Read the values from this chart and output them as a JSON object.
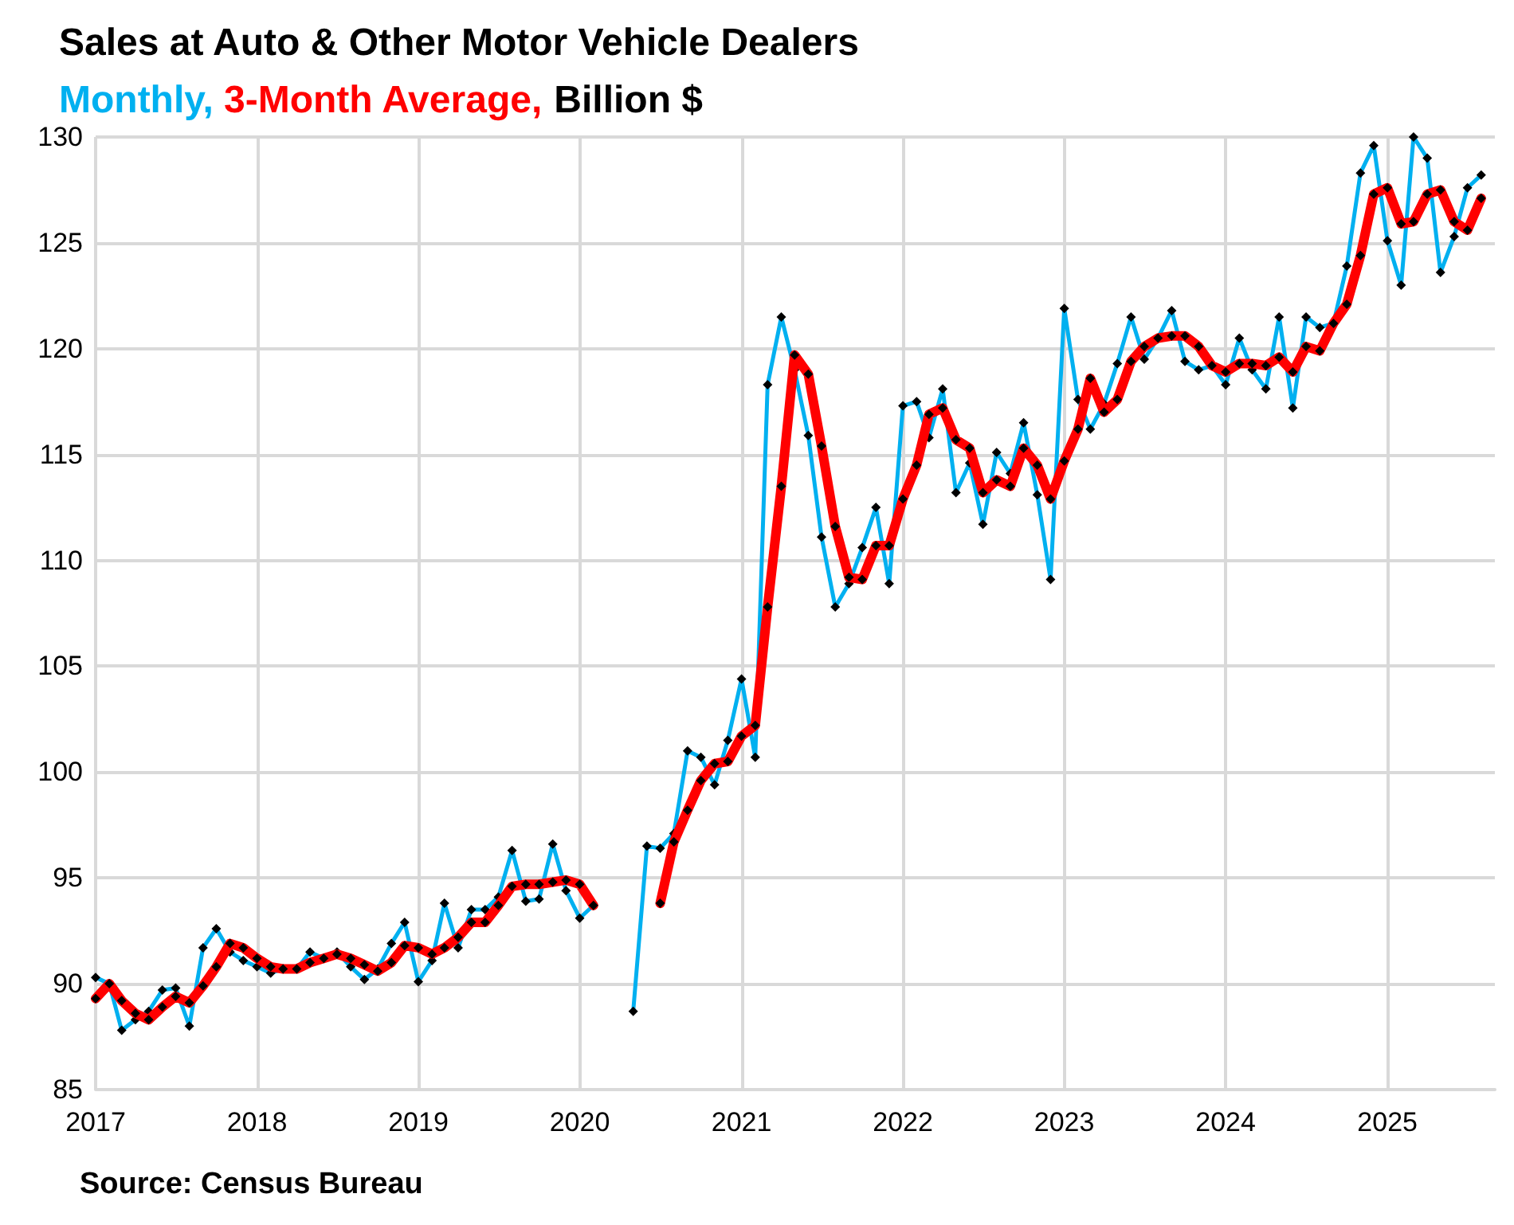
{
  "chart_data": {
    "type": "line",
    "title": "Sales at Auto & Other Motor Vehicle Dealers",
    "subtitle": "Billion $",
    "annotations": [
      "Source: Census Bureau"
    ],
    "x": [
      "2017-01",
      "2017-02",
      "2017-03",
      "2017-04",
      "2017-05",
      "2017-06",
      "2017-07",
      "2017-08",
      "2017-09",
      "2017-10",
      "2017-11",
      "2017-12",
      "2018-01",
      "2018-02",
      "2018-03",
      "2018-04",
      "2018-05",
      "2018-06",
      "2018-07",
      "2018-08",
      "2018-09",
      "2018-10",
      "2018-11",
      "2018-12",
      "2019-01",
      "2019-02",
      "2019-03",
      "2019-04",
      "2019-05",
      "2019-06",
      "2019-07",
      "2019-08",
      "2019-09",
      "2019-10",
      "2019-11",
      "2019-12",
      "2020-01",
      "2020-02",
      "2020-03",
      "2020-04",
      "2020-05",
      "2020-06",
      "2020-07",
      "2020-08",
      "2020-09",
      "2020-10",
      "2020-11",
      "2020-12",
      "2021-01",
      "2021-02",
      "2021-03",
      "2021-04",
      "2021-05",
      "2021-06",
      "2021-07",
      "2021-08",
      "2021-09",
      "2021-10",
      "2021-11",
      "2021-12",
      "2022-01",
      "2022-02",
      "2022-03",
      "2022-04",
      "2022-05",
      "2022-06",
      "2022-07",
      "2022-08",
      "2022-09",
      "2022-10",
      "2022-11",
      "2022-12",
      "2023-01",
      "2023-02",
      "2023-03",
      "2023-04",
      "2023-05",
      "2023-06",
      "2023-07",
      "2023-08",
      "2023-09",
      "2023-10",
      "2023-11",
      "2023-12",
      "2024-01",
      "2024-02",
      "2024-03",
      "2024-04",
      "2024-05",
      "2024-06",
      "2024-07",
      "2024-08",
      "2024-09",
      "2024-10",
      "2024-11",
      "2024-12",
      "2025-01",
      "2025-02",
      "2025-03",
      "2025-04",
      "2025-05",
      "2025-06",
      "2025-07",
      "2025-08"
    ],
    "series": [
      {
        "name": "Monthly,",
        "color": "#00b0f0",
        "values": [
          90.3,
          90.0,
          87.8,
          88.3,
          88.7,
          89.7,
          89.8,
          88.0,
          91.7,
          92.6,
          91.5,
          91.1,
          90.8,
          90.5,
          90.7,
          90.7,
          91.5,
          91.2,
          91.5,
          90.8,
          90.2,
          90.7,
          91.9,
          92.9,
          90.1,
          91.1,
          93.8,
          91.7,
          93.5,
          93.5,
          94.1,
          96.3,
          93.9,
          94.0,
          96.6,
          94.4,
          93.1,
          93.7,
          null,
          null,
          88.7,
          96.5,
          96.4,
          97.1,
          101.0,
          100.7,
          99.4,
          101.5,
          104.4,
          100.7,
          118.3,
          121.5,
          119.0,
          115.9,
          111.1,
          107.8,
          108.9,
          110.6,
          112.5,
          108.9,
          117.3,
          117.5,
          115.8,
          118.1,
          113.2,
          114.6,
          111.7,
          115.1,
          114.1,
          116.5,
          113.1,
          109.1,
          121.9,
          117.6,
          116.2,
          117.4,
          119.3,
          121.5,
          119.5,
          120.5,
          121.8,
          119.4,
          119.0,
          119.2,
          118.3,
          120.5,
          119.0,
          118.1,
          121.5,
          117.2,
          121.5,
          121.0,
          121.2,
          123.9,
          128.3,
          129.6,
          125.1,
          123.0,
          130.0,
          129.0,
          123.6,
          125.3,
          127.6,
          128.2
        ]
      },
      {
        "name": "3-Month Average,",
        "color": "#ff0000",
        "values": [
          89.3,
          90.0,
          89.2,
          88.6,
          88.3,
          88.9,
          89.4,
          89.1,
          89.9,
          90.8,
          91.9,
          91.7,
          91.2,
          90.8,
          90.7,
          90.7,
          91.0,
          91.2,
          91.4,
          91.2,
          90.9,
          90.6,
          91.0,
          91.8,
          91.7,
          91.4,
          91.7,
          92.2,
          92.9,
          92.9,
          93.7,
          94.6,
          94.7,
          94.7,
          94.8,
          94.9,
          94.7,
          93.7,
          null,
          null,
          null,
          null,
          93.8,
          96.7,
          98.2,
          99.6,
          100.4,
          100.5,
          101.7,
          102.2,
          107.8,
          113.5,
          119.7,
          118.8,
          115.4,
          111.6,
          109.2,
          109.1,
          110.7,
          110.7,
          112.9,
          114.5,
          116.9,
          117.2,
          115.7,
          115.3,
          113.2,
          113.8,
          113.5,
          115.3,
          114.5,
          112.9,
          114.7,
          116.2,
          118.6,
          117.0,
          117.6,
          119.4,
          120.1,
          120.5,
          120.6,
          120.6,
          120.1,
          119.2,
          118.9,
          119.3,
          119.3,
          119.2,
          119.6,
          118.9,
          120.1,
          119.9,
          121.2,
          122.1,
          124.4,
          127.3,
          127.6,
          125.9,
          126.0,
          127.3,
          127.5,
          126.0,
          125.6,
          127.1
        ]
      }
    ],
    "xlim": [
      "2017-01",
      "2025-09"
    ],
    "xticks": [
      "2017",
      "2018",
      "2019",
      "2020",
      "2021",
      "2022",
      "2023",
      "2024",
      "2025"
    ],
    "ylim": [
      85,
      130
    ],
    "yticks": [
      85,
      90,
      95,
      100,
      105,
      110,
      115,
      120,
      125,
      130
    ],
    "grid": true,
    "legend": false,
    "marker": "diamond",
    "line_style": "solid"
  }
}
